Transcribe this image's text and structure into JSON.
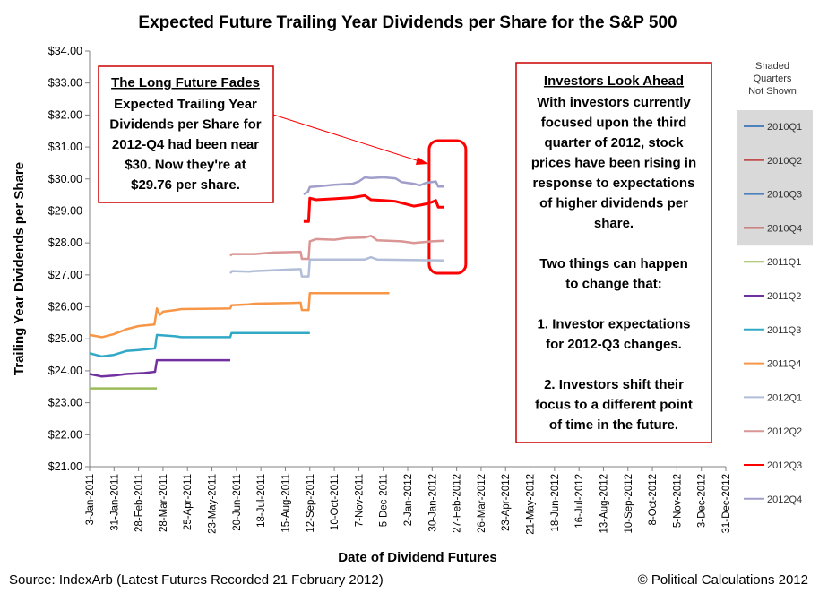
{
  "chart_data": {
    "type": "line",
    "title": "Expected Future Trailing Year Dividends per Share for the S&P 500",
    "xlabel": "Date of Dividend Futures",
    "ylabel": "Trailing Year Dividends per Share",
    "ylim": [
      21,
      34
    ],
    "yticks": [
      "$21.00",
      "$22.00",
      "$23.00",
      "$24.00",
      "$25.00",
      "$26.00",
      "$27.00",
      "$28.00",
      "$29.00",
      "$30.00",
      "$31.00",
      "$32.00",
      "$33.00",
      "$34.00"
    ],
    "xticks": [
      "3-Jan-2011",
      "31-Jan-2011",
      "28-Feb-2011",
      "28-Mar-2011",
      "25-Apr-2011",
      "23-May-2011",
      "20-Jun-2011",
      "18-Jul-2011",
      "15-Aug-2011",
      "12-Sep-2011",
      "10-Oct-2011",
      "7-Nov-2011",
      "5-Dec-2011",
      "2-Jan-2012",
      "30-Jan-2012",
      "27-Feb-2012",
      "26-Mar-2012",
      "23-Apr-2012",
      "21-May-2012",
      "18-Jun-2012",
      "16-Jul-2012",
      "13-Aug-2012",
      "10-Sep-2012",
      "8-Oct-2012",
      "5-Nov-2012",
      "3-Dec-2012",
      "31-Dec-2012"
    ],
    "x_unit": "weeks since 3-Jan-2011",
    "series": [
      {
        "name": "2011Q1",
        "color": "#9bbb59",
        "points": [
          [
            0,
            23.45
          ],
          [
            11,
            23.45
          ]
        ]
      },
      {
        "name": "2011Q2",
        "color": "#7030a0",
        "points": [
          [
            0,
            23.9
          ],
          [
            2,
            23.82
          ],
          [
            4,
            23.85
          ],
          [
            6,
            23.9
          ],
          [
            9,
            23.93
          ],
          [
            10.7,
            23.97
          ],
          [
            11,
            24.33
          ],
          [
            23,
            24.33
          ]
        ]
      },
      {
        "name": "2011Q3",
        "color": "#31a9c6",
        "points": [
          [
            0,
            24.55
          ],
          [
            2,
            24.45
          ],
          [
            4,
            24.5
          ],
          [
            6,
            24.62
          ],
          [
            8,
            24.65
          ],
          [
            10.7,
            24.7
          ],
          [
            11,
            25.12
          ],
          [
            14,
            25.08
          ],
          [
            15,
            25.05
          ],
          [
            23,
            25.05
          ],
          [
            23.2,
            25.18
          ],
          [
            36,
            25.18
          ]
        ]
      },
      {
        "name": "2011Q4",
        "color": "#f79646",
        "points": [
          [
            0,
            25.12
          ],
          [
            2,
            25.05
          ],
          [
            4,
            25.15
          ],
          [
            6,
            25.3
          ],
          [
            8,
            25.4
          ],
          [
            10.6,
            25.45
          ],
          [
            11,
            25.95
          ],
          [
            11.5,
            25.75
          ],
          [
            12,
            25.85
          ],
          [
            14,
            25.9
          ],
          [
            15,
            25.93
          ],
          [
            23,
            25.95
          ],
          [
            23.2,
            26.05
          ],
          [
            26,
            26.08
          ],
          [
            27,
            26.1
          ],
          [
            33,
            26.12
          ],
          [
            34.5,
            26.13
          ],
          [
            34.7,
            25.9
          ],
          [
            35.8,
            25.9
          ],
          [
            36,
            26.43
          ],
          [
            49,
            26.43
          ]
        ]
      },
      {
        "name": "2012Q1",
        "color": "#b2bed8",
        "points": [
          [
            23,
            27.05
          ],
          [
            23.3,
            27.12
          ],
          [
            26,
            27.1
          ],
          [
            27,
            27.12
          ],
          [
            33,
            27.17
          ],
          [
            34.5,
            27.18
          ],
          [
            34.7,
            26.95
          ],
          [
            35.8,
            26.95
          ],
          [
            36,
            27.48
          ],
          [
            45,
            27.48
          ],
          [
            46,
            27.55
          ],
          [
            47,
            27.48
          ],
          [
            58,
            27.45
          ]
        ]
      },
      {
        "name": "2012Q2",
        "color": "#d99694",
        "points": [
          [
            23,
            27.6
          ],
          [
            23.3,
            27.65
          ],
          [
            27,
            27.65
          ],
          [
            30,
            27.7
          ],
          [
            34.5,
            27.72
          ],
          [
            34.7,
            27.5
          ],
          [
            35.8,
            27.5
          ],
          [
            36,
            28.05
          ],
          [
            37,
            28.12
          ],
          [
            40,
            28.1
          ],
          [
            42,
            28.15
          ],
          [
            45,
            28.17
          ],
          [
            46,
            28.22
          ],
          [
            47,
            28.08
          ],
          [
            51,
            28.05
          ],
          [
            53,
            28.0
          ],
          [
            56,
            28.05
          ],
          [
            58,
            28.07
          ]
        ]
      },
      {
        "name": "2012Q3",
        "color": "#ff0000",
        "width": 3,
        "points": [
          [
            35,
            28.67
          ],
          [
            35.8,
            28.67
          ],
          [
            36,
            29.4
          ],
          [
            37,
            29.35
          ],
          [
            40,
            29.38
          ],
          [
            43,
            29.42
          ],
          [
            44,
            29.45
          ],
          [
            45,
            29.48
          ],
          [
            46,
            29.35
          ],
          [
            48,
            29.33
          ],
          [
            50,
            29.3
          ],
          [
            51,
            29.25
          ],
          [
            52,
            29.2
          ],
          [
            53,
            29.15
          ],
          [
            54,
            29.18
          ],
          [
            55,
            29.22
          ],
          [
            56,
            29.28
          ],
          [
            56.6,
            29.33
          ],
          [
            57,
            29.12
          ],
          [
            58,
            29.12
          ]
        ]
      },
      {
        "name": "2012Q4",
        "color": "#a09eca",
        "points": [
          [
            35,
            29.52
          ],
          [
            35.7,
            29.6
          ],
          [
            36,
            29.75
          ],
          [
            38,
            29.78
          ],
          [
            40,
            29.82
          ],
          [
            43,
            29.85
          ],
          [
            44,
            29.92
          ],
          [
            45,
            30.05
          ],
          [
            46,
            30.03
          ],
          [
            48,
            30.05
          ],
          [
            50,
            30.02
          ],
          [
            51,
            29.9
          ],
          [
            53,
            29.85
          ],
          [
            54,
            29.8
          ],
          [
            55,
            29.88
          ],
          [
            56.6,
            29.92
          ],
          [
            57,
            29.76
          ],
          [
            58,
            29.76
          ]
        ]
      }
    ],
    "legend": {
      "placement": "right",
      "title_lines": [
        "Shaded",
        "Quarters",
        "Not Shown"
      ],
      "entries": [
        {
          "name": "2010Q1",
          "color": "#4f81bd",
          "shaded": true
        },
        {
          "name": "2010Q2",
          "color": "#c0504d",
          "shaded": true
        },
        {
          "name": "2010Q3",
          "color": "#4f81bd",
          "shaded": true
        },
        {
          "name": "2010Q4",
          "color": "#c0504d",
          "shaded": true
        },
        {
          "name": "2011Q1",
          "color": "#9bbb59",
          "shaded": false
        },
        {
          "name": "2011Q2",
          "color": "#7030a0",
          "shaded": false
        },
        {
          "name": "2011Q3",
          "color": "#31a9c6",
          "shaded": false
        },
        {
          "name": "2011Q4",
          "color": "#f79646",
          "shaded": false
        },
        {
          "name": "2012Q1",
          "color": "#b2bed8",
          "shaded": false
        },
        {
          "name": "2012Q2",
          "color": "#d99694",
          "shaded": false
        },
        {
          "name": "2012Q3",
          "color": "#ff0000",
          "shaded": false
        },
        {
          "name": "2012Q4",
          "color": "#a09eca",
          "shaded": false
        }
      ]
    },
    "highlight": {
      "x_range": [
        55.5,
        61.5
      ],
      "y_range": [
        27.05,
        31.2
      ],
      "color": "#ff0000"
    }
  },
  "annotations": {
    "left_box": {
      "heading": "The Long Future Fades",
      "lines": [
        "Expected Trailing Year",
        "Dividends per Share for",
        "2012-Q4 had been near",
        "$30.  Now they're at",
        "$29.76 per share."
      ]
    },
    "right_box": {
      "heading": "Investors Look Ahead",
      "lines": [
        "With investors currently",
        "focused upon the third",
        "quarter of 2012, stock",
        "prices have been rising in",
        "response to expectations",
        "of higher dividends per",
        "share.",
        "",
        "Two things can happen",
        "to change that:",
        "",
        "1. Investor expectations",
        "for 2012-Q3 changes.",
        "",
        "2. Investors shift their",
        "focus to a different point",
        "of time in the future."
      ]
    }
  },
  "footer": {
    "source": "Source:  IndexArb (Latest Futures Recorded 21 February 2012)",
    "copyright": "© Political Calculations 2012"
  },
  "colors": {
    "accent_red": "#e00000",
    "legend_shade": "#d9d9d9",
    "axis": "#808080"
  }
}
